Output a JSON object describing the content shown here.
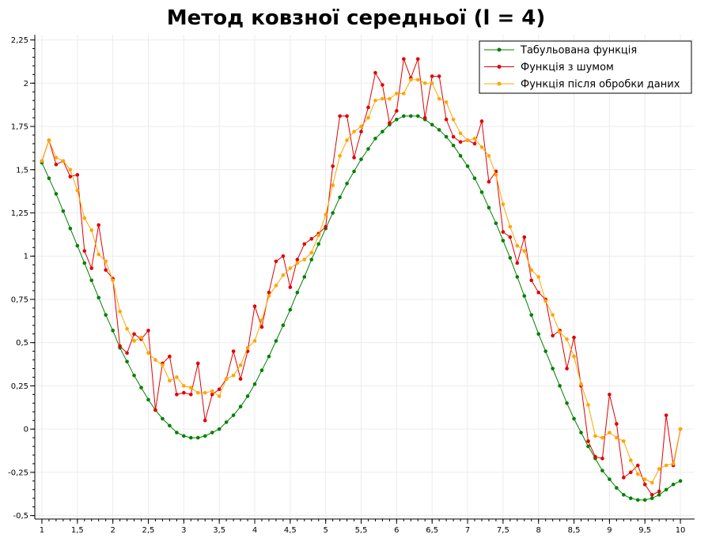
{
  "chart_data": {
    "type": "line",
    "title": "Метод ковзної середньої (l = 4)",
    "xlabel": "",
    "ylabel": "",
    "xlim": [
      0.9,
      10.2
    ],
    "ylim": [
      -0.52,
      2.28
    ],
    "x_ticks": [
      1,
      1.5,
      2,
      2.5,
      3,
      3.5,
      4,
      4.5,
      5,
      5.5,
      6,
      6.5,
      7,
      7.5,
      8,
      8.5,
      9,
      9.5,
      10
    ],
    "x_tick_labels": [
      "1",
      "1,5",
      "2",
      "2,5",
      "3",
      "3,5",
      "4",
      "4,5",
      "5",
      "5,5",
      "6",
      "6,5",
      "7",
      "7,5",
      "8",
      "8,5",
      "9",
      "9,5",
      "10"
    ],
    "y_ticks": [
      -0.5,
      -0.25,
      0,
      0.25,
      0.5,
      0.75,
      1,
      1.25,
      1.5,
      1.75,
      2,
      2.25
    ],
    "y_tick_labels": [
      "-0,5",
      "-0,25",
      "0",
      "0,25",
      "0,5",
      "0,75",
      "1",
      "1,25",
      "1,5",
      "1,75",
      "2",
      "2,25"
    ],
    "grid": true,
    "legend_position": "top-right",
    "x": [
      1.0,
      1.1,
      1.2,
      1.3,
      1.4,
      1.5,
      1.6,
      1.7,
      1.8,
      1.9,
      2.0,
      2.1,
      2.2,
      2.3,
      2.4,
      2.5,
      2.6,
      2.7,
      2.8,
      2.9,
      3.0,
      3.1,
      3.2,
      3.3,
      3.4,
      3.5,
      3.6,
      3.7,
      3.8,
      3.9,
      4.0,
      4.1,
      4.2,
      4.3,
      4.4,
      4.5,
      4.6,
      4.7,
      4.8,
      4.9,
      5.0,
      5.1,
      5.2,
      5.3,
      5.4,
      5.5,
      5.6,
      5.7,
      5.8,
      5.9,
      6.0,
      6.1,
      6.2,
      6.3,
      6.4,
      6.5,
      6.6,
      6.7,
      6.8,
      6.9,
      7.0,
      7.1,
      7.2,
      7.3,
      7.4,
      7.5,
      7.6,
      7.7,
      7.8,
      7.9,
      8.0,
      8.1,
      8.2,
      8.3,
      8.4,
      8.5,
      8.6,
      8.7,
      8.8,
      8.9,
      9.0,
      9.1,
      9.2,
      9.3,
      9.4,
      9.5,
      9.6,
      9.7,
      9.8,
      9.9,
      10.0
    ],
    "series": [
      {
        "name": "Табульована функція",
        "color": "#008000",
        "values": [
          1.54,
          1.45,
          1.36,
          1.26,
          1.16,
          1.06,
          0.96,
          0.86,
          0.76,
          0.66,
          0.57,
          0.47,
          0.39,
          0.31,
          0.24,
          0.17,
          0.11,
          0.06,
          0.02,
          -0.02,
          -0.04,
          -0.05,
          -0.05,
          -0.04,
          -0.02,
          0.0,
          0.04,
          0.08,
          0.13,
          0.19,
          0.26,
          0.34,
          0.42,
          0.51,
          0.6,
          0.69,
          0.79,
          0.88,
          0.98,
          1.07,
          1.16,
          1.25,
          1.34,
          1.42,
          1.49,
          1.56,
          1.62,
          1.68,
          1.72,
          1.76,
          1.79,
          1.81,
          1.81,
          1.81,
          1.79,
          1.76,
          1.73,
          1.69,
          1.64,
          1.58,
          1.52,
          1.45,
          1.37,
          1.28,
          1.19,
          1.09,
          0.99,
          0.88,
          0.77,
          0.66,
          0.55,
          0.45,
          0.35,
          0.25,
          0.15,
          0.06,
          -0.02,
          -0.1,
          -0.17,
          -0.24,
          -0.29,
          -0.34,
          -0.38,
          -0.4,
          -0.41,
          -0.41,
          -0.4,
          -0.38,
          -0.35,
          -0.32,
          -0.3
        ]
      },
      {
        "name": "Функція з шумом",
        "color": "#e00000",
        "values": [
          1.55,
          1.67,
          1.53,
          1.55,
          1.46,
          1.47,
          1.03,
          0.93,
          1.18,
          0.92,
          0.87,
          0.48,
          0.44,
          0.55,
          0.52,
          0.57,
          0.11,
          0.38,
          0.42,
          0.2,
          0.21,
          0.2,
          0.38,
          0.05,
          0.2,
          0.23,
          0.29,
          0.45,
          0.29,
          0.45,
          0.71,
          0.59,
          0.79,
          0.97,
          1.0,
          0.82,
          0.98,
          1.07,
          1.1,
          1.13,
          1.17,
          1.52,
          1.81,
          1.81,
          1.57,
          1.72,
          1.86,
          2.06,
          1.99,
          1.77,
          1.84,
          2.14,
          2.03,
          2.14,
          1.8,
          2.04,
          2.04,
          1.79,
          1.69,
          1.66,
          1.67,
          1.65,
          1.78,
          1.43,
          1.49,
          1.14,
          1.11,
          0.96,
          1.11,
          0.86,
          0.79,
          0.75,
          0.54,
          0.57,
          0.35,
          0.53,
          0.25,
          -0.07,
          -0.16,
          -0.17,
          0.2,
          0.03,
          -0.28,
          -0.25,
          -0.21,
          -0.32,
          -0.38,
          -0.36,
          0.08,
          -0.21,
          0.0
        ]
      },
      {
        "name": "Функція після обробки даних",
        "color": "#ffa500",
        "values": [
          1.55,
          1.67,
          1.57,
          1.55,
          1.5,
          1.38,
          1.22,
          1.15,
          1.01,
          0.97,
          0.86,
          0.68,
          0.58,
          0.51,
          0.53,
          0.44,
          0.4,
          0.37,
          0.28,
          0.3,
          0.25,
          0.24,
          0.21,
          0.21,
          0.22,
          0.19,
          0.29,
          0.31,
          0.37,
          0.47,
          0.51,
          0.63,
          0.77,
          0.83,
          0.89,
          0.93,
          0.96,
          0.98,
          1.02,
          1.12,
          1.24,
          1.41,
          1.58,
          1.67,
          1.72,
          1.75,
          1.8,
          1.9,
          1.91,
          1.91,
          1.94,
          1.94,
          2.02,
          2.02,
          2.0,
          2.0,
          1.91,
          1.89,
          1.79,
          1.71,
          1.67,
          1.68,
          1.63,
          1.58,
          1.47,
          1.3,
          1.17,
          1.06,
          1.03,
          0.92,
          0.88,
          0.74,
          0.66,
          0.56,
          0.52,
          0.42,
          0.26,
          0.14,
          -0.04,
          -0.05,
          -0.02,
          -0.05,
          -0.07,
          -0.18,
          -0.26,
          -0.29,
          -0.31,
          -0.23,
          -0.21,
          -0.2,
          0.0
        ]
      }
    ]
  }
}
